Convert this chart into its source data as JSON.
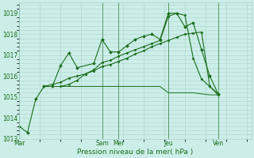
{
  "bg_color": "#cceee8",
  "grid_color": "#aad4cc",
  "line_color": "#1a6e1a",
  "ylabel": "Pression niveau de la mer( hPa )",
  "ylim": [
    1013,
    1019.5
  ],
  "yticks": [
    1013,
    1014,
    1015,
    1016,
    1017,
    1018,
    1019
  ],
  "day_labels": [
    "Mar",
    "Sam",
    "Mer",
    "Jeu",
    "Ven"
  ],
  "day_positions": [
    0,
    40,
    48,
    72,
    96
  ],
  "xlim": [
    0,
    112
  ],
  "series1_x": [
    0,
    4,
    8,
    12,
    16,
    20,
    24,
    28,
    36,
    40,
    44,
    48,
    52,
    56,
    60,
    64,
    68,
    72,
    76,
    80,
    84,
    88,
    92,
    96
  ],
  "series1_y": [
    1013.6,
    1013.3,
    1014.9,
    1015.5,
    1015.5,
    1016.5,
    1017.1,
    1016.4,
    1016.6,
    1017.75,
    1017.15,
    1017.15,
    1017.45,
    1017.75,
    1017.9,
    1018.0,
    1017.75,
    1019.0,
    1019.0,
    1018.35,
    1018.55,
    1017.25,
    1016.0,
    1015.15
  ],
  "series2_x": [
    12,
    16,
    20,
    24,
    28,
    32,
    36,
    40,
    44,
    48,
    52,
    56,
    60,
    64,
    68,
    72,
    76,
    80,
    84,
    88,
    92,
    96
  ],
  "series2_y": [
    1015.5,
    1015.5,
    1015.5,
    1015.5,
    1015.5,
    1015.5,
    1015.5,
    1015.5,
    1015.5,
    1015.5,
    1015.5,
    1015.5,
    1015.5,
    1015.5,
    1015.5,
    1015.2,
    1015.2,
    1015.2,
    1015.2,
    1015.15,
    1015.1,
    1015.1
  ],
  "series3_x": [
    12,
    16,
    20,
    24,
    28,
    32,
    36,
    40,
    44,
    48,
    52,
    56,
    60,
    64,
    68,
    72,
    76,
    80,
    84,
    88,
    92,
    96
  ],
  "series3_y": [
    1015.5,
    1015.6,
    1015.7,
    1015.9,
    1016.0,
    1016.1,
    1016.25,
    1016.45,
    1016.55,
    1016.7,
    1016.85,
    1017.05,
    1017.2,
    1017.4,
    1017.55,
    1017.7,
    1017.85,
    1018.0,
    1018.05,
    1018.1,
    1015.5,
    1015.1
  ],
  "series4_x": [
    20,
    24,
    28,
    32,
    36,
    40,
    44,
    48,
    52,
    56,
    60,
    64,
    68,
    72,
    76,
    80,
    84,
    88,
    92,
    96
  ],
  "series4_y": [
    1015.5,
    1015.6,
    1015.8,
    1016.1,
    1016.3,
    1016.65,
    1016.75,
    1016.95,
    1017.1,
    1017.25,
    1017.4,
    1017.55,
    1017.7,
    1018.85,
    1019.0,
    1018.9,
    1016.85,
    1015.85,
    1015.5,
    1015.15
  ],
  "ytick_fontsize": 5.5,
  "xtick_fontsize": 5.5,
  "xlabel_fontsize": 6.5,
  "linewidth": 0.8,
  "markersize": 2.0
}
